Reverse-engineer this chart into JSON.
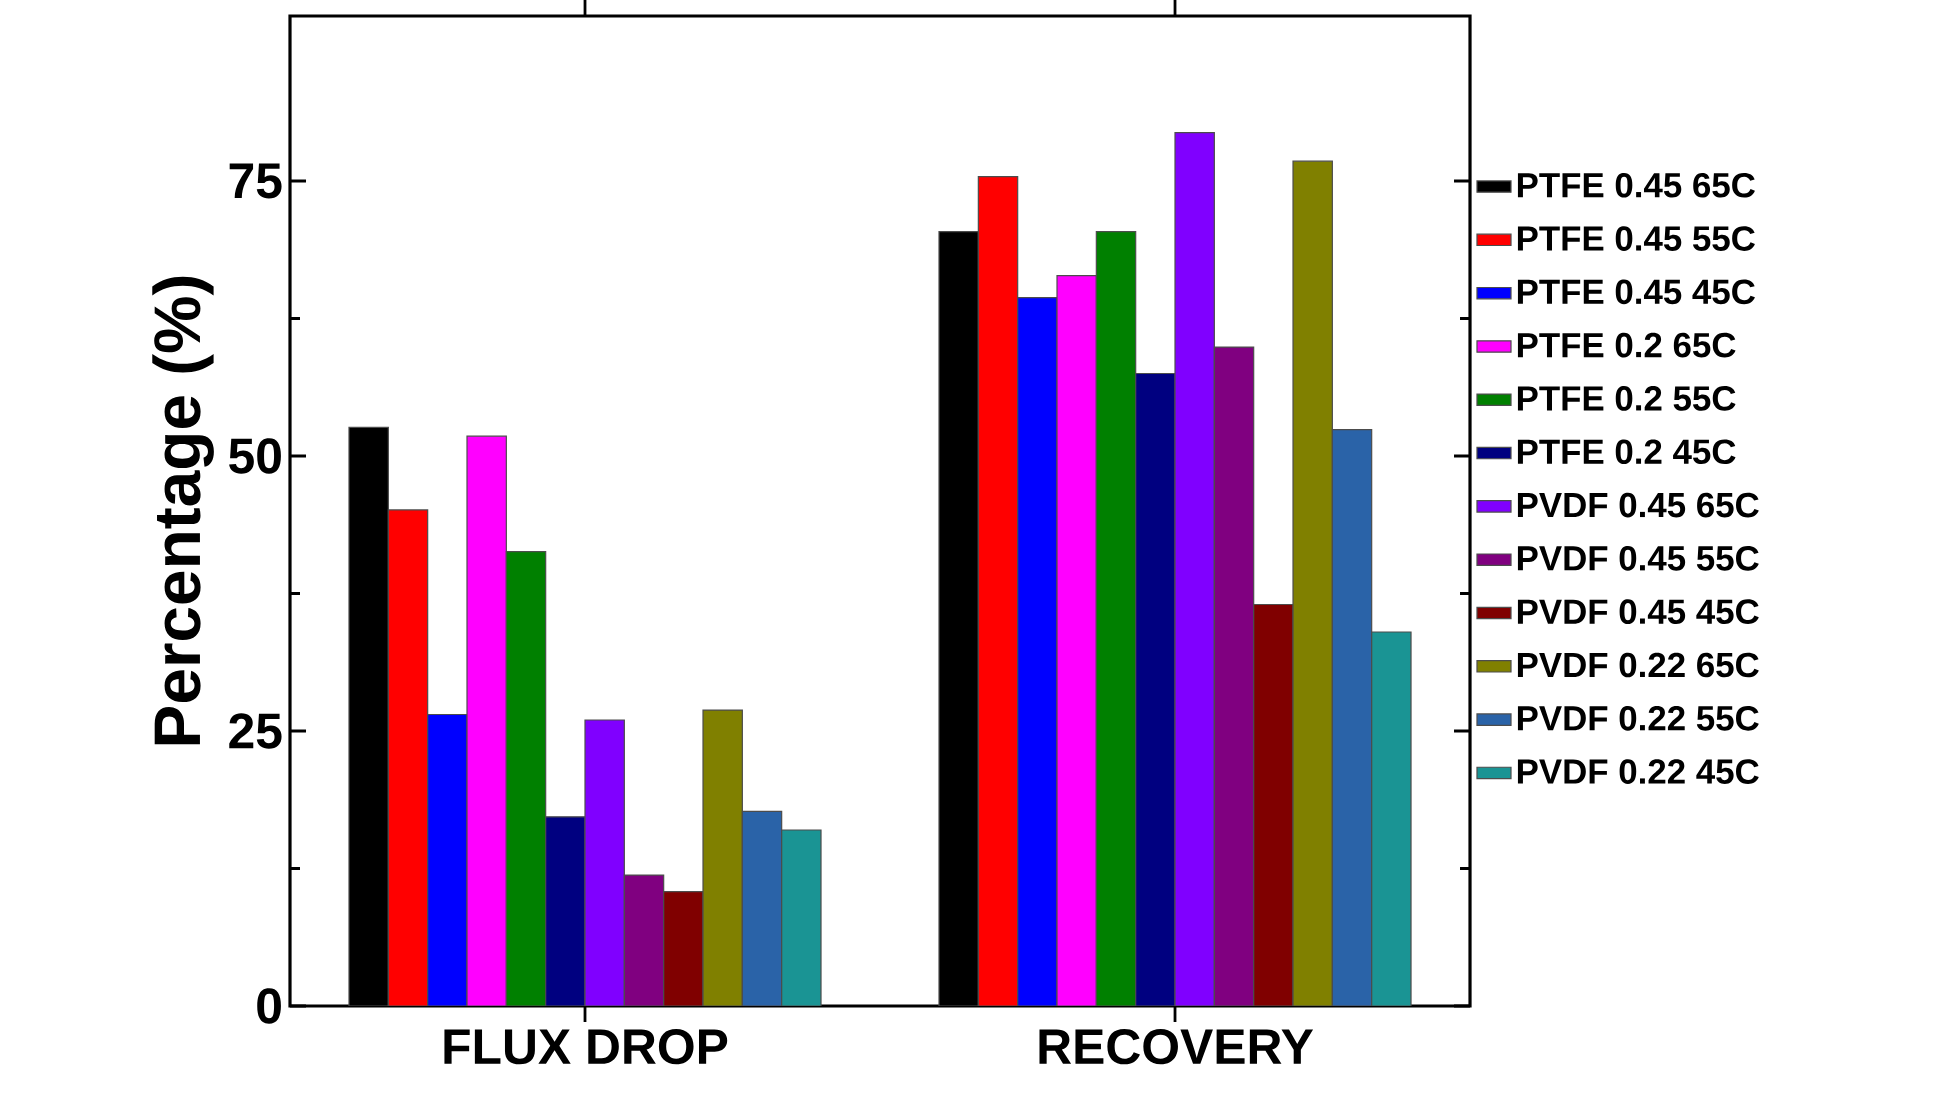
{
  "chart_data": {
    "type": "bar",
    "ylabel": "Percentage (%)",
    "categories": [
      "FLUX DROP",
      "RECOVERY"
    ],
    "ylim": [
      0,
      90
    ],
    "yticks": [
      0,
      25,
      50,
      75
    ],
    "legend": "right",
    "grid": false,
    "series": [
      {
        "name": "PTFE 0.45 65C",
        "color": "#000000",
        "values": [
          52.6,
          70.4
        ]
      },
      {
        "name": "PTFE 0.45 55C",
        "color": "#ff0000",
        "values": [
          45.1,
          75.4
        ]
      },
      {
        "name": "PTFE 0.45 45C",
        "color": "#0000ff",
        "values": [
          26.5,
          64.4
        ]
      },
      {
        "name": "PTFE 0.2 65C",
        "color": "#ff00ff",
        "values": [
          51.8,
          66.4
        ]
      },
      {
        "name": "PTFE 0.2 55C",
        "color": "#008000",
        "values": [
          41.3,
          70.4
        ]
      },
      {
        "name": "PTFE 0.2 45C",
        "color": "#000080",
        "values": [
          17.2,
          57.5
        ]
      },
      {
        "name": "PVDF 0.45 65C",
        "color": "#8000ff",
        "values": [
          26.0,
          79.4
        ]
      },
      {
        "name": "PVDF 0.45 55C",
        "color": "#800080",
        "values": [
          11.9,
          59.9
        ]
      },
      {
        "name": "PVDF 0.45 45C",
        "color": "#800000",
        "values": [
          10.4,
          36.5
        ]
      },
      {
        "name": "PVDF 0.22 65C",
        "color": "#808000",
        "values": [
          26.9,
          76.8
        ]
      },
      {
        "name": "PVDF 0.22 55C",
        "color": "#2a63a8",
        "values": [
          17.7,
          52.4
        ]
      },
      {
        "name": "PVDF 0.22 45C",
        "color": "#1a9494",
        "values": [
          16.0,
          34.0
        ]
      }
    ]
  }
}
